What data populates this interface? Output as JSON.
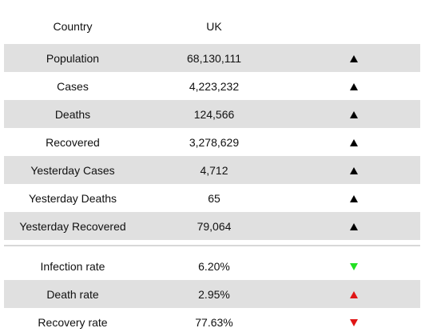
{
  "header": {
    "col1": "Country",
    "col2": "UK"
  },
  "stats": [
    {
      "label": "Population",
      "value": "68,130,111",
      "trend": "up",
      "color": "#000000"
    },
    {
      "label": "Cases",
      "value": "4,223,232",
      "trend": "up",
      "color": "#000000"
    },
    {
      "label": "Deaths",
      "value": "124,566",
      "trend": "up",
      "color": "#000000"
    },
    {
      "label": "Recovered",
      "value": "3,278,629",
      "trend": "up",
      "color": "#000000"
    },
    {
      "label": "Yesterday Cases",
      "value": "4,712",
      "trend": "up",
      "color": "#000000"
    },
    {
      "label": "Yesterday Deaths",
      "value": "65",
      "trend": "up",
      "color": "#000000"
    },
    {
      "label": "Yesterday Recovered",
      "value": "79,064",
      "trend": "up",
      "color": "#000000"
    }
  ],
  "rates": [
    {
      "label": "Infection rate",
      "value": "6.20%",
      "trend": "down",
      "color": "#22e022"
    },
    {
      "label": "Death rate",
      "value": "2.95%",
      "trend": "up",
      "color": "#e01515"
    },
    {
      "label": "Recovery rate",
      "value": "77.63%",
      "trend": "down",
      "color": "#e01515"
    }
  ],
  "icons": {
    "up": "triangle-up-icon",
    "down": "triangle-down-icon"
  }
}
